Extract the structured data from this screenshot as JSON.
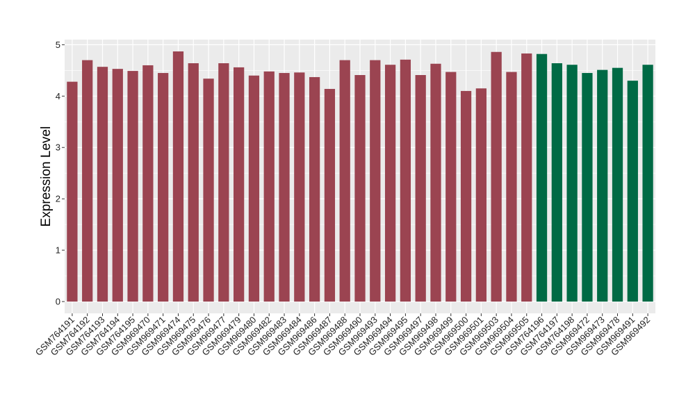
{
  "chart_data": {
    "type": "bar",
    "title": "",
    "xlabel": "",
    "ylabel": "Expression Level",
    "ylim": [
      0,
      5
    ],
    "yticks": [
      0,
      1,
      2,
      3,
      4,
      5
    ],
    "grid": true,
    "legend": "none",
    "colors": {
      "group1": "#9b4451",
      "group2": "#006a45",
      "panel": "#ebebeb",
      "gridline": "#ffffff"
    },
    "categories": [
      "GSM764191",
      "GSM764192",
      "GSM764193",
      "GSM764194",
      "GSM764195",
      "GSM969470",
      "GSM969471",
      "GSM969474",
      "GSM969475",
      "GSM969476",
      "GSM969477",
      "GSM969479",
      "GSM969480",
      "GSM969482",
      "GSM969483",
      "GSM969484",
      "GSM969486",
      "GSM969487",
      "GSM969488",
      "GSM969490",
      "GSM969493",
      "GSM969494",
      "GSM969495",
      "GSM969497",
      "GSM969498",
      "GSM969499",
      "GSM969500",
      "GSM969501",
      "GSM969503",
      "GSM969504",
      "GSM969505",
      "GSM764196",
      "GSM764197",
      "GSM764198",
      "GSM969472",
      "GSM969473",
      "GSM969478",
      "GSM969491",
      "GSM969492"
    ],
    "values": [
      4.28,
      4.7,
      4.57,
      4.53,
      4.49,
      4.6,
      4.45,
      4.87,
      4.64,
      4.34,
      4.64,
      4.56,
      4.4,
      4.48,
      4.45,
      4.46,
      4.37,
      4.14,
      4.7,
      4.41,
      4.7,
      4.61,
      4.71,
      4.41,
      4.63,
      4.47,
      4.1,
      4.15,
      4.86,
      4.47,
      4.83,
      4.82,
      4.64,
      4.61,
      4.45,
      4.51,
      4.55,
      4.3,
      4.61
    ],
    "groups": [
      1,
      1,
      1,
      1,
      1,
      1,
      1,
      1,
      1,
      1,
      1,
      1,
      1,
      1,
      1,
      1,
      1,
      1,
      1,
      1,
      1,
      1,
      1,
      1,
      1,
      1,
      1,
      1,
      1,
      1,
      1,
      2,
      2,
      2,
      2,
      2,
      2,
      2,
      2
    ]
  }
}
